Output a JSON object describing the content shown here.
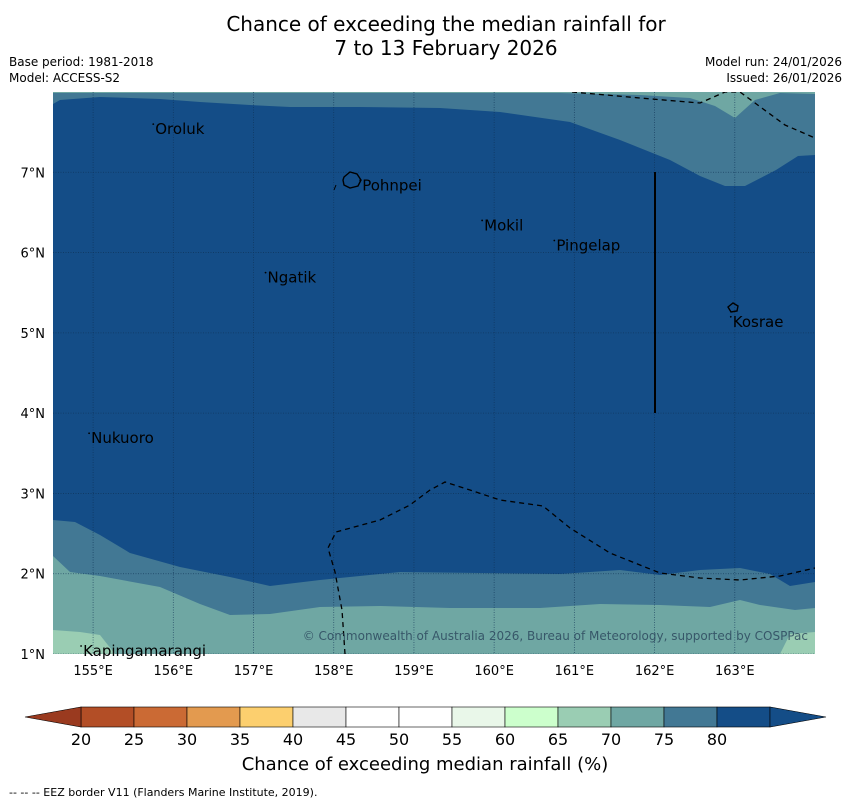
{
  "title": {
    "line1": "Chance of exceeding the median rainfall for",
    "line2": "7 to 13 February 2026"
  },
  "meta": {
    "base_period": "Base period: 1981-2018",
    "model": "Model: ACCESS-S2",
    "model_run": "Model run: 24/01/2026",
    "issued": "Issued: 26/01/2026"
  },
  "map": {
    "lon_range": [
      154.5,
      164.0
    ],
    "lat_range": [
      1.0,
      8.0
    ],
    "lon_ticks": [
      "155°E",
      "156°E",
      "157°E",
      "158°E",
      "159°E",
      "160°E",
      "161°E",
      "162°E",
      "163°E"
    ],
    "lat_ticks": [
      "1°N",
      "2°N",
      "3°N",
      "4°N",
      "5°N",
      "6°N",
      "7°N"
    ],
    "places": [
      {
        "name": "Oroluk",
        "lon": 155.75,
        "lat": 7.6
      },
      {
        "name": "Pohnpei",
        "lon": 158.33,
        "lat": 6.9
      },
      {
        "name": "Mokil",
        "lon": 159.85,
        "lat": 6.4
      },
      {
        "name": "Pingelap",
        "lon": 160.75,
        "lat": 6.15
      },
      {
        "name": "Ngatik",
        "lon": 157.15,
        "lat": 5.75
      },
      {
        "name": "Kosrae",
        "lon": 162.95,
        "lat": 5.2
      },
      {
        "name": "Nukuoro",
        "lon": 154.95,
        "lat": 3.75
      },
      {
        "name": "Kapingamarangi",
        "lon": 154.85,
        "lat": 1.1
      }
    ],
    "copyright": "© Commonwealth of Australia 2026, Bureau of Meteorology, supported by COSPPac"
  },
  "colorbar": {
    "ticks": [
      "20",
      "25",
      "30",
      "35",
      "40",
      "45",
      "50",
      "55",
      "60",
      "65",
      "70",
      "75",
      "80"
    ],
    "colors": [
      "#b34e26",
      "#cb6a34",
      "#e39a4f",
      "#fccf6e",
      "#e8e8e8",
      "#ffffff",
      "#ffffff",
      "#e9f7e9",
      "#ccffcc",
      "#9acdb3",
      "#6fa7a3",
      "#427894",
      "#144d87"
    ],
    "low_color": "#9a3a1f",
    "high_color": "#144d87",
    "label": "Chance of exceeding median rainfall (%)"
  },
  "footer": "--  --  -- EEZ border V11 (Flanders Marine Institute, 2019)."
}
